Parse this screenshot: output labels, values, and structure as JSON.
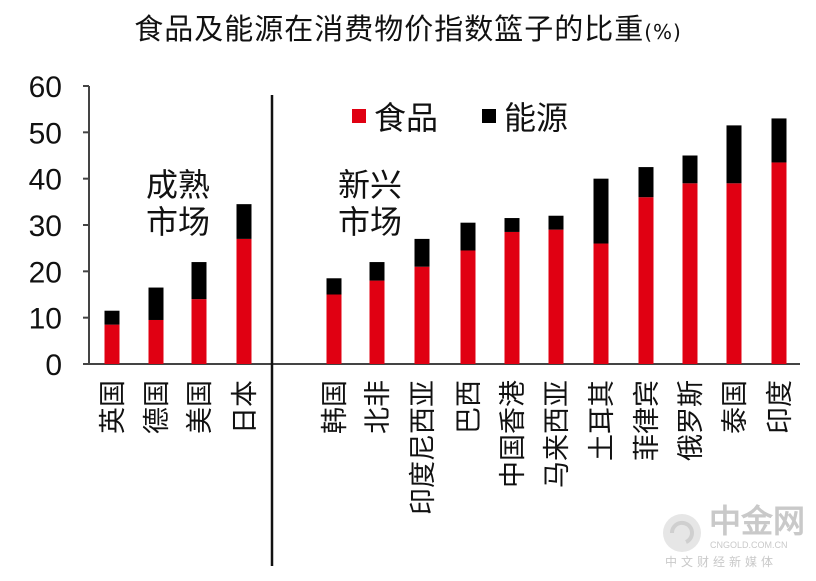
{
  "title": "食品及能源在消费物价指数篮子的比重",
  "title_unit": "(%)",
  "legend": {
    "food": "食品",
    "energy": "能源"
  },
  "colors": {
    "food": "#e00012",
    "energy": "#000000",
    "axis": "#444444",
    "watermark": "#c9c9c9"
  },
  "groups": {
    "mature": [
      "成熟",
      "市场"
    ],
    "emerging": [
      "新兴",
      "市场"
    ]
  },
  "watermark": {
    "name": "中金网",
    "site": "CNGOLD.COM.CN",
    "tagline": "中文财经新媒体"
  },
  "chart_data": {
    "type": "bar",
    "stacked": true,
    "ylim": [
      0,
      60
    ],
    "yticks": [
      0,
      10,
      20,
      30,
      40,
      50,
      60
    ],
    "grid": false,
    "legend_position": "top-right",
    "categories": [
      "英国",
      "德国",
      "美国",
      "日本",
      "韩国",
      "北非",
      "印度尼西亚",
      "巴西",
      "中国香港",
      "马来西亚",
      "土耳其",
      "菲律宾",
      "俄罗斯",
      "泰国",
      "印度"
    ],
    "series": [
      {
        "name": "食品",
        "values": [
          8.5,
          9.5,
          14,
          27,
          15,
          18,
          21,
          24.5,
          28.5,
          29,
          26,
          36,
          39,
          39,
          43.5
        ]
      },
      {
        "name": "能源",
        "values": [
          3,
          7,
          8,
          7.5,
          3.5,
          4,
          6,
          6,
          3,
          3,
          14,
          6.5,
          6,
          12.5,
          9.5
        ]
      }
    ]
  }
}
